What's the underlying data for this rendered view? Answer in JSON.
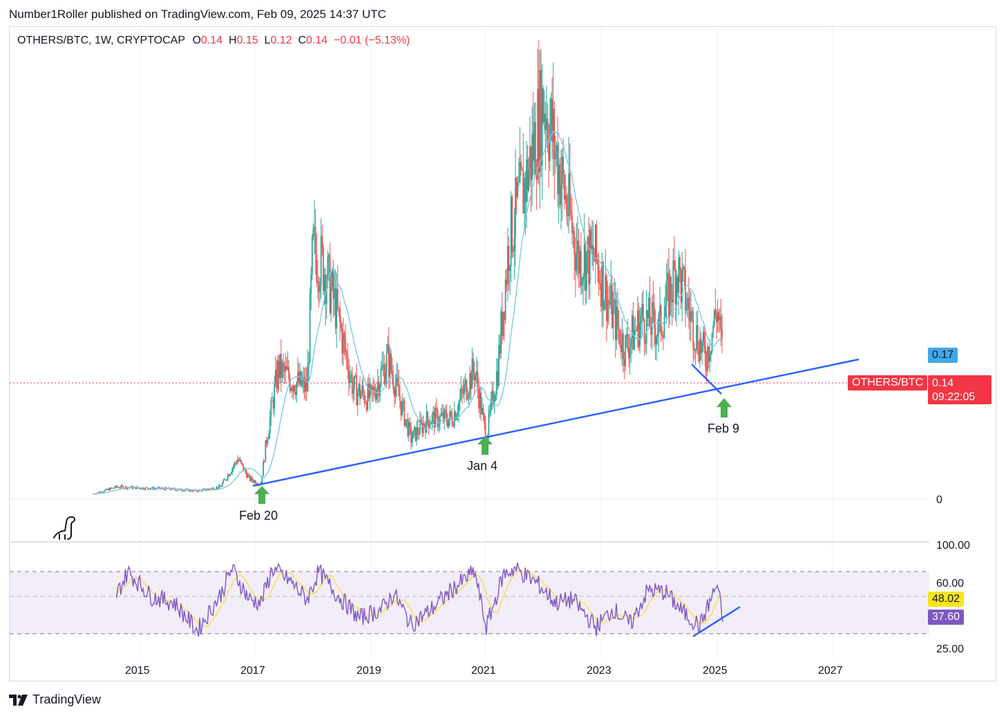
{
  "header": {
    "published_text": "Number1Roller published on TradingView.com, Feb 09, 2025 14:37 UTC"
  },
  "legend": {
    "symbol": "OTHERS/BTC, 1W, CRYPTOCAP",
    "open_label": "O",
    "open": "0.14",
    "high_label": "H",
    "high": "0.15",
    "low_label": "L",
    "low": "0.12",
    "close_label": "C",
    "close": "0.14",
    "change": "−0.01 (−5.13%)"
  },
  "badges": {
    "ma_value": "0.17",
    "symbol_tag": "OTHERS/BTC",
    "last_price": "0.14",
    "countdown": "09:22:05",
    "rsi_ma": "48.02",
    "rsi_value": "37.60"
  },
  "price_axis": {
    "zero_label": "0"
  },
  "rsi_axis": {
    "labels": [
      "100.00",
      "60.00",
      "25.00"
    ]
  },
  "annotations": {
    "feb20": "Feb 20",
    "jan4": "Jan 4",
    "feb9": "Feb 9"
  },
  "footer": {
    "brand": "TradingView"
  },
  "colors": {
    "up": "#26a69a",
    "down": "#ef5350",
    "ma": "#7ec8e3",
    "trendline": "#2962ff",
    "rsi": "#7e57c2",
    "rsi_ma": "#f5e15b",
    "arrow": "#4caf50",
    "price_line": "#f23645"
  },
  "chart_data": {
    "type": "line",
    "title": "OTHERS/BTC, 1W, CRYPTOCAP",
    "x_ticks": [
      "2015",
      "2017",
      "2019",
      "2021",
      "2023",
      "2025",
      "2027"
    ],
    "price_series": {
      "name": "OTHERS/BTC",
      "points": [
        [
          "2014.2",
          0.005
        ],
        [
          "2014.6",
          0.012
        ],
        [
          "2015.0",
          0.011
        ],
        [
          "2015.5",
          0.01
        ],
        [
          "2016.0",
          0.008
        ],
        [
          "2016.4",
          0.012
        ],
        [
          "2016.7",
          0.04
        ],
        [
          "2016.9",
          0.02
        ],
        [
          "2017.1",
          0.015
        ],
        [
          "2017.2",
          0.06
        ],
        [
          "2017.4",
          0.13
        ],
        [
          "2017.6",
          0.12
        ],
        [
          "2017.9",
          0.11
        ],
        [
          "2018.0",
          0.25
        ],
        [
          "2018.2",
          0.23
        ],
        [
          "2018.4",
          0.19
        ],
        [
          "2018.7",
          0.11
        ],
        [
          "2019.0",
          0.1
        ],
        [
          "2019.3",
          0.14
        ],
        [
          "2019.7",
          0.06
        ],
        [
          "2020.0",
          0.08
        ],
        [
          "2020.4",
          0.08
        ],
        [
          "2020.8",
          0.13
        ],
        [
          "2021.0",
          0.06
        ],
        [
          "2021.2",
          0.13
        ],
        [
          "2021.4",
          0.26
        ],
        [
          "2021.7",
          0.32
        ],
        [
          "2022.0",
          0.4
        ],
        [
          "2022.3",
          0.32
        ],
        [
          "2022.6",
          0.24
        ],
        [
          "2022.9",
          0.24
        ],
        [
          "2023.1",
          0.2
        ],
        [
          "2023.4",
          0.15
        ],
        [
          "2023.7",
          0.18
        ],
        [
          "2024.0",
          0.17
        ],
        [
          "2024.3",
          0.23
        ],
        [
          "2024.6",
          0.17
        ],
        [
          "2024.8",
          0.14
        ],
        [
          "2025.0",
          0.19
        ],
        [
          "2025.1",
          0.14
        ]
      ]
    },
    "rsi_series": {
      "name": "RSI",
      "points": [
        [
          "2014.6",
          55
        ],
        [
          "2014.8",
          70
        ],
        [
          "2015.2",
          54
        ],
        [
          "2015.6",
          50
        ],
        [
          "2016.0",
          32
        ],
        [
          "2016.4",
          55
        ],
        [
          "2016.6",
          72
        ],
        [
          "2016.9",
          52
        ],
        [
          "2017.1",
          50
        ],
        [
          "2017.3",
          72
        ],
        [
          "2017.6",
          64
        ],
        [
          "2017.9",
          52
        ],
        [
          "2018.1",
          70
        ],
        [
          "2018.4",
          56
        ],
        [
          "2018.8",
          40
        ],
        [
          "2019.2",
          46
        ],
        [
          "2019.4",
          56
        ],
        [
          "2019.7",
          36
        ],
        [
          "2020.0",
          44
        ],
        [
          "2020.4",
          58
        ],
        [
          "2020.8",
          70
        ],
        [
          "2021.0",
          34
        ],
        [
          "2021.3",
          68
        ],
        [
          "2021.5",
          72
        ],
        [
          "2021.9",
          62
        ],
        [
          "2022.2",
          50
        ],
        [
          "2022.5",
          52
        ],
        [
          "2022.9",
          34
        ],
        [
          "2023.2",
          46
        ],
        [
          "2023.5",
          36
        ],
        [
          "2023.8",
          58
        ],
        [
          "2024.1",
          57
        ],
        [
          "2024.4",
          44
        ],
        [
          "2024.7",
          35
        ],
        [
          "2025.0",
          62
        ],
        [
          "2025.1",
          37.6
        ]
      ]
    },
    "rsi_ylim": [
      25,
      100
    ],
    "rsi_levels": [
      70,
      30
    ],
    "price_ylim": [
      0,
      0.42
    ],
    "grid": true
  }
}
